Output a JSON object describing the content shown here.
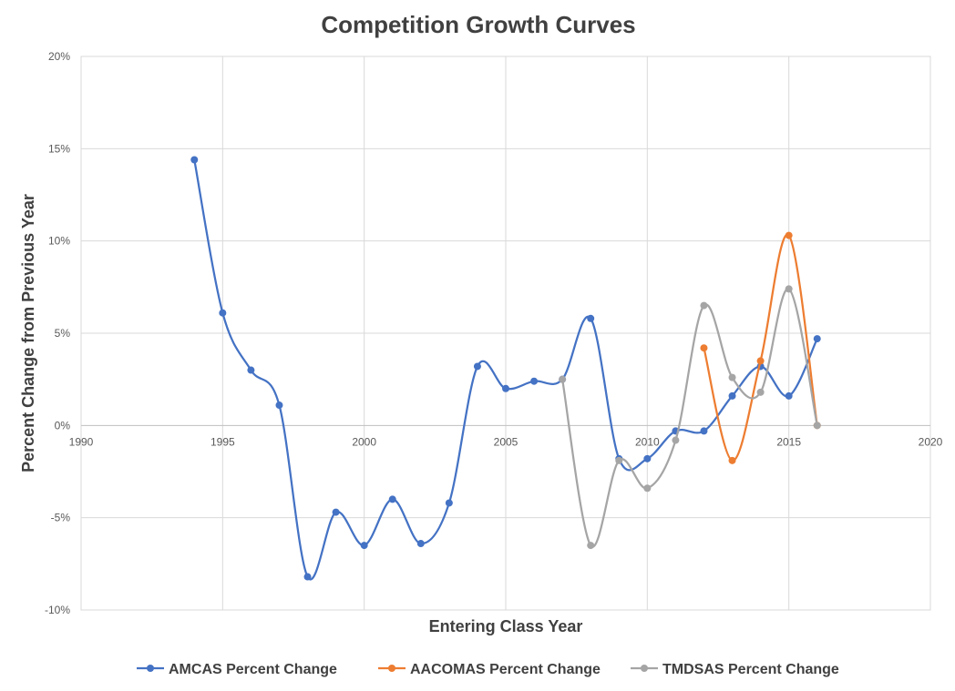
{
  "chart_data": {
    "type": "line",
    "title": "Competition Growth Curves",
    "xlabel": "Entering Class Year",
    "ylabel": "Percent Change from Previous Year",
    "xlim": [
      1990,
      2020
    ],
    "ylim": [
      -10,
      20
    ],
    "x_ticks": [
      1990,
      1995,
      2000,
      2005,
      2010,
      2015,
      2020
    ],
    "y_ticks": [
      -10,
      -5,
      0,
      5,
      10,
      15,
      20
    ],
    "x_tick_labels": [
      "1990",
      "1995",
      "2000",
      "2005",
      "2010",
      "2015",
      "2020"
    ],
    "y_tick_labels": [
      "-10%",
      "-5%",
      "0%",
      "5%",
      "10%",
      "15%",
      "20%"
    ],
    "grid": true,
    "smoothed": true,
    "legend_position": "bottom",
    "series": [
      {
        "name": "AMCAS Percent Change",
        "color": "#4472c4",
        "x": [
          1994,
          1995,
          1996,
          1997,
          1998,
          1999,
          2000,
          2001,
          2002,
          2003,
          2004,
          2005,
          2006,
          2007,
          2008,
          2009,
          2010,
          2011,
          2012,
          2013,
          2014,
          2015,
          2016
        ],
        "y": [
          14.4,
          6.1,
          3.0,
          1.1,
          -8.2,
          -4.7,
          -6.5,
          -4.0,
          -6.4,
          -4.2,
          3.2,
          2.0,
          2.4,
          2.5,
          5.8,
          -1.8,
          -1.8,
          -0.3,
          -0.3,
          1.6,
          3.2,
          1.6,
          4.7
        ]
      },
      {
        "name": "AACOMAS Percent Change",
        "color": "#ed7d31",
        "x": [
          2012,
          2013,
          2014,
          2015,
          2016
        ],
        "y": [
          4.2,
          -1.9,
          3.5,
          10.3,
          0.0
        ]
      },
      {
        "name": "TMDSAS Percent Change",
        "color": "#a5a5a5",
        "x": [
          2007,
          2008,
          2009,
          2010,
          2011,
          2012,
          2013,
          2014,
          2015,
          2016
        ],
        "y": [
          2.5,
          -6.5,
          -1.9,
          -3.4,
          -0.8,
          6.5,
          2.6,
          1.8,
          7.4,
          0.0
        ]
      }
    ]
  }
}
